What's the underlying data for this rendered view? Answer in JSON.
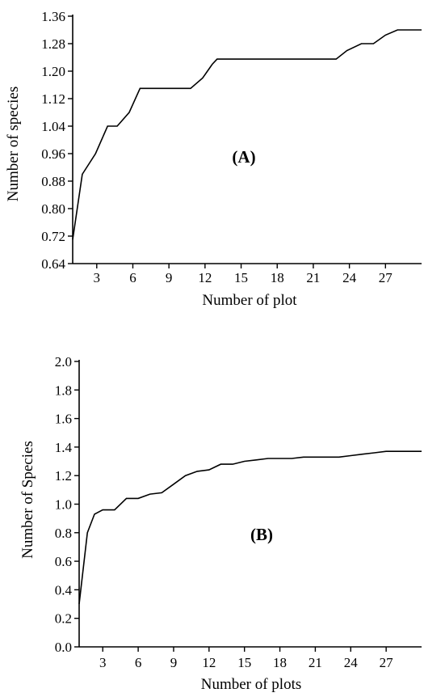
{
  "chart_data": [
    {
      "type": "line",
      "annotation": "(A)",
      "xlabel": "Number of plot",
      "ylabel": "Number of species",
      "xlim": [
        1,
        30
      ],
      "ylim": [
        0.64,
        1.36
      ],
      "xticks": [
        3,
        6,
        9,
        12,
        15,
        18,
        21,
        24,
        27
      ],
      "yticks": [
        "0.64",
        "0.72",
        "0.80",
        "0.88",
        "0.96",
        "1.04",
        "1.12",
        "1.20",
        "1.28",
        "1.36"
      ],
      "grid": false,
      "series": [
        {
          "x": [
            1,
            1.8,
            2.9,
            3.9,
            4.7,
            5.7,
            6.6,
            7.2,
            8,
            9,
            10,
            10.8,
            11.8,
            12.6,
            13,
            14,
            15,
            16,
            17,
            18,
            19,
            20,
            21,
            22,
            22.9,
            23.8,
            25,
            26,
            27,
            28,
            30
          ],
          "values": [
            0.71,
            0.9,
            0.96,
            1.04,
            1.04,
            1.08,
            1.15,
            1.15,
            1.15,
            1.15,
            1.15,
            1.15,
            1.18,
            1.22,
            1.235,
            1.235,
            1.235,
            1.235,
            1.235,
            1.235,
            1.235,
            1.235,
            1.235,
            1.235,
            1.235,
            1.26,
            1.28,
            1.28,
            1.305,
            1.32,
            1.32
          ]
        }
      ]
    },
    {
      "type": "line",
      "annotation": "(B)",
      "xlabel": "Number of plots",
      "ylabel": "Number of Species",
      "xlim": [
        1,
        30
      ],
      "ylim": [
        0.0,
        2.0
      ],
      "xticks": [
        3,
        6,
        9,
        12,
        15,
        18,
        21,
        24,
        27
      ],
      "yticks": [
        "0.0",
        "0.2",
        "0.4",
        "0.6",
        "0.8",
        "1.0",
        "1.2",
        "1.4",
        "1.6",
        "1.8",
        "2.0"
      ],
      "grid": false,
      "series": [
        {
          "x": [
            1,
            1.7,
            2.3,
            3,
            4,
            5,
            6,
            7,
            8,
            9,
            10,
            11,
            12,
            13,
            14,
            15,
            16,
            17,
            18,
            19,
            20,
            21,
            22,
            23,
            24,
            25,
            26,
            27,
            28,
            29,
            30
          ],
          "values": [
            0.3,
            0.8,
            0.93,
            0.96,
            0.96,
            1.04,
            1.04,
            1.07,
            1.08,
            1.14,
            1.2,
            1.23,
            1.24,
            1.28,
            1.28,
            1.3,
            1.31,
            1.32,
            1.32,
            1.32,
            1.33,
            1.33,
            1.33,
            1.33,
            1.34,
            1.35,
            1.36,
            1.37,
            1.37,
            1.37,
            1.37
          ]
        }
      ]
    }
  ]
}
